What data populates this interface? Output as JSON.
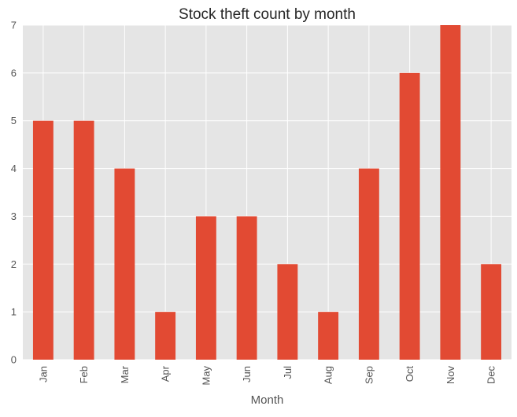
{
  "chart_data": {
    "type": "bar",
    "title": "Stock theft count by month",
    "xlabel": "Month",
    "ylabel": "",
    "categories": [
      "Jan",
      "Feb",
      "Mar",
      "Apr",
      "May",
      "Jun",
      "Jul",
      "Aug",
      "Sep",
      "Oct",
      "Nov",
      "Dec"
    ],
    "values": [
      5,
      5,
      4,
      1,
      3,
      3,
      2,
      1,
      4,
      6,
      7,
      2
    ],
    "ylim": [
      0,
      7
    ],
    "yticks": [
      0,
      1,
      2,
      3,
      4,
      5,
      6,
      7
    ],
    "grid": true,
    "legend": "none",
    "colors": {
      "bar": "#E24A33",
      "plot_background": "#E5E5E5",
      "grid": "#FFFFFF"
    }
  }
}
